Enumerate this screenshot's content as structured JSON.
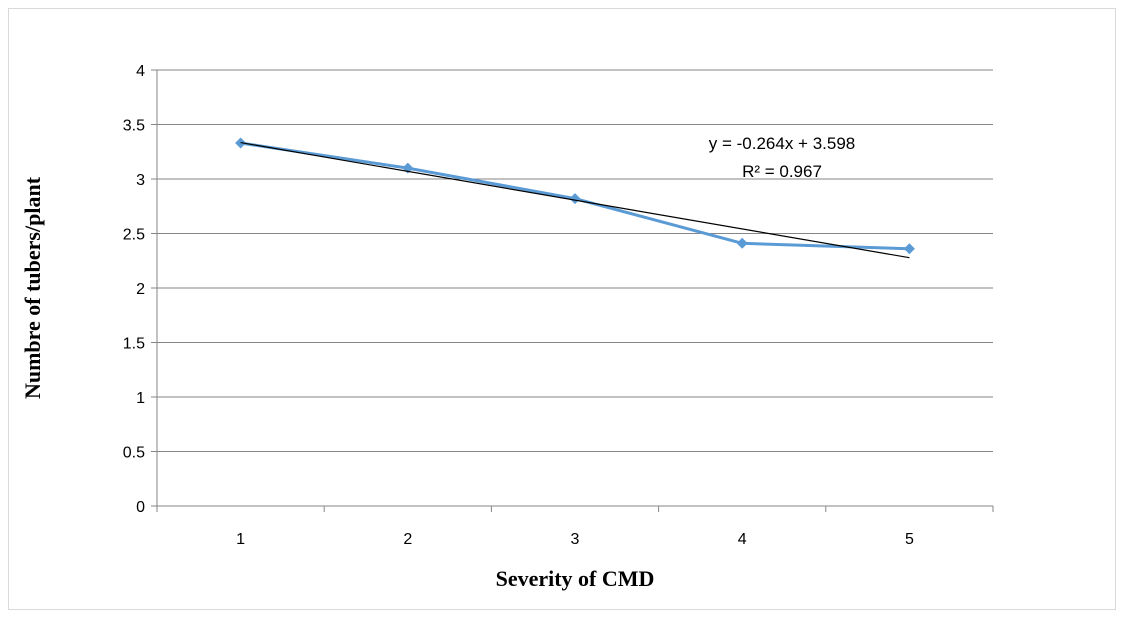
{
  "chart_data": {
    "type": "line",
    "title": "",
    "xlabel": "Severity of CMD",
    "ylabel": "Numbre of tubers/plant",
    "categories": [
      "1",
      "2",
      "3",
      "4",
      "5"
    ],
    "x": [
      1,
      2,
      3,
      4,
      5
    ],
    "series": [
      {
        "values": [
          3.33,
          3.1,
          2.82,
          2.41,
          2.36
        ],
        "color": "#5b9bd5",
        "marker": "diamond"
      }
    ],
    "trendline": {
      "slope": -0.264,
      "intercept": 3.598,
      "equation_label": "y = -0.264x + 3.598",
      "r2_label": "R² = 0.967",
      "color": "#000000"
    },
    "ylim": [
      0,
      4
    ],
    "yticks": [
      0,
      0.5,
      1,
      1.5,
      2,
      2.5,
      3,
      3.5,
      4
    ],
    "ytick_labels": [
      "0",
      "0.5",
      "1",
      "1.5",
      "2",
      "2.5",
      "3",
      "3.5",
      "4"
    ],
    "grid": true,
    "legend": "none"
  }
}
